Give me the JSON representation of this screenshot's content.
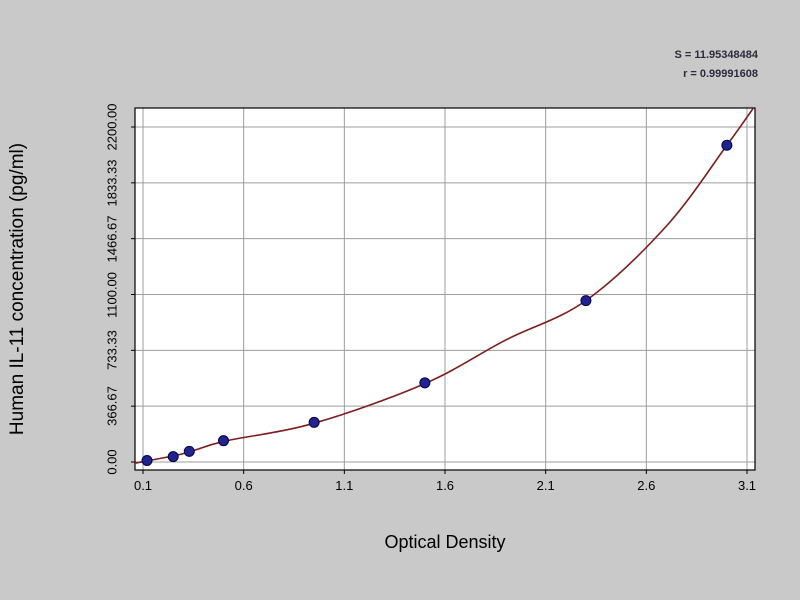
{
  "chart_data": {
    "type": "scatter",
    "title": "",
    "xlabel": "Optical Density",
    "ylabel": "Human IL-11 concentration (pg/ml)",
    "annotations": [
      "S = 11.95348484",
      "r = 0.99991608"
    ],
    "xlim": [
      0.1,
      3.1
    ],
    "ylim": [
      0,
      2200
    ],
    "x_ticks": [
      0.1,
      0.6,
      1.1,
      1.6,
      2.1,
      2.6,
      3.1
    ],
    "x_tick_labels": [
      "0.1",
      "0.6",
      "1.1",
      "1.6",
      "2.1",
      "2.6",
      "3.1"
    ],
    "y_ticks": [
      0,
      366.67,
      733.33,
      1100.0,
      1466.67,
      1833.33,
      2200.0
    ],
    "y_tick_labels": [
      "0.00",
      "366.67",
      "733.33",
      "1100.00",
      "1466.67",
      "1833.33",
      "2200.00"
    ],
    "grid": true,
    "legend": null,
    "points": [
      [
        0.12,
        10
      ],
      [
        0.25,
        35
      ],
      [
        0.33,
        70
      ],
      [
        0.5,
        140
      ],
      [
        0.95,
        260
      ],
      [
        1.5,
        520
      ],
      [
        2.3,
        1060
      ],
      [
        3.0,
        2080
      ]
    ],
    "curve": [
      [
        0.05,
        -10
      ],
      [
        0.3,
        55
      ],
      [
        0.5,
        135
      ],
      [
        0.95,
        255
      ],
      [
        1.5,
        515
      ],
      [
        1.9,
        800
      ],
      [
        2.3,
        1060
      ],
      [
        2.7,
        1550
      ],
      [
        3.0,
        2080
      ],
      [
        3.14,
        2340
      ]
    ],
    "colors": {
      "point": "#23238e",
      "point_outline": "#000050",
      "curve": "#7d1d1d",
      "grid": "#9c9c9c",
      "plot_bg": "#ffffff",
      "outer_bg": "#c9c9c9",
      "border": "#000000",
      "text": "#000000"
    }
  }
}
